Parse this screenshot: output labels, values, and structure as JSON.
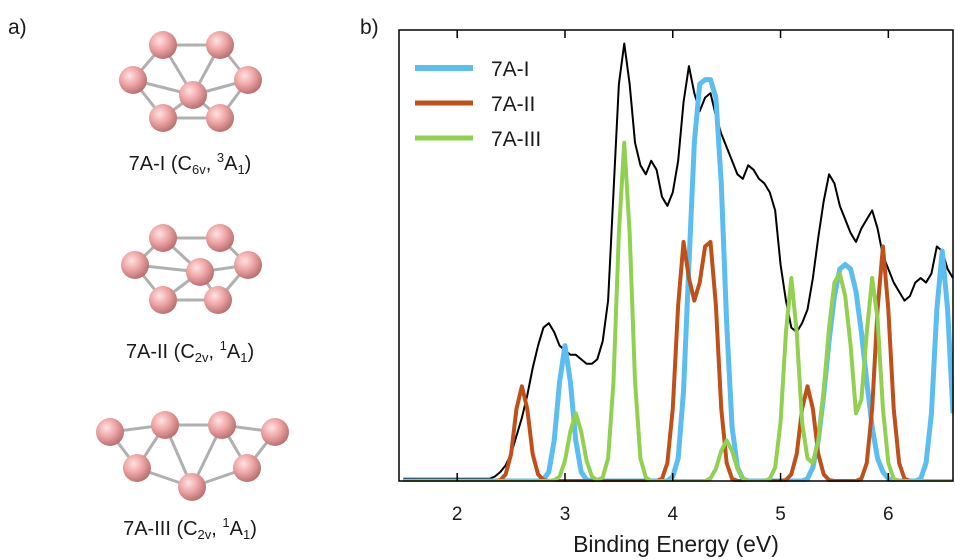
{
  "panel_labels": [
    "a)",
    "b)"
  ],
  "structures": [
    {
      "label": [
        {
          "text": "7A-I (C"
        },
        {
          "text": "6v",
          "style": "sub"
        },
        {
          "text": ", "
        },
        {
          "text": "3",
          "style": "sup"
        },
        {
          "text": "A"
        },
        {
          "text": "1",
          "style": "sub"
        },
        {
          "text": ")"
        }
      ]
    },
    {
      "label": [
        {
          "text": "7A-II (C"
        },
        {
          "text": "2v",
          "style": "sub"
        },
        {
          "text": ", "
        },
        {
          "text": "1",
          "style": "sup"
        },
        {
          "text": "A"
        },
        {
          "text": "1",
          "style": "sub"
        },
        {
          "text": ")"
        }
      ]
    },
    {
      "label": [
        {
          "text": "7A-III (C"
        },
        {
          "text": "2v",
          "style": "sub"
        },
        {
          "text": ", "
        },
        {
          "text": "1",
          "style": "sup"
        },
        {
          "text": "A"
        },
        {
          "text": "1",
          "style": "sub"
        },
        {
          "text": ")"
        }
      ]
    }
  ],
  "chart_data": {
    "type": "line",
    "x_label": "Binding Energy (eV)",
    "legend": "upper left",
    "xlim": [
      1.46,
      6.6
    ],
    "ylim": [
      0,
      100
    ],
    "xticks": [
      2,
      3,
      4,
      5,
      6
    ],
    "x": [
      1.5,
      1.55,
      1.6,
      1.65,
      1.7,
      1.75,
      1.8,
      1.85,
      1.9,
      1.95,
      2,
      2.05,
      2.1,
      2.15,
      2.2,
      2.25,
      2.3,
      2.35,
      2.4,
      2.45,
      2.5,
      2.55,
      2.6,
      2.65,
      2.7,
      2.75,
      2.8,
      2.85,
      2.9,
      2.95,
      3,
      3.05,
      3.1,
      3.15,
      3.2,
      3.25,
      3.3,
      3.35,
      3.4,
      3.45,
      3.5,
      3.55,
      3.6,
      3.65,
      3.7,
      3.75,
      3.8,
      3.85,
      3.9,
      3.95,
      4,
      4.05,
      4.1,
      4.15,
      4.2,
      4.25,
      4.3,
      4.35,
      4.4,
      4.45,
      4.5,
      4.55,
      4.6,
      4.65,
      4.7,
      4.75,
      4.8,
      4.85,
      4.9,
      4.95,
      5,
      5.05,
      5.1,
      5.15,
      5.2,
      5.25,
      5.3,
      5.35,
      5.4,
      5.45,
      5.5,
      5.55,
      5.6,
      5.65,
      5.7,
      5.75,
      5.8,
      5.85,
      5.9,
      5.95,
      6,
      6.05,
      6.1,
      6.15,
      6.2,
      6.25,
      6.3,
      6.35,
      6.4,
      6.45,
      6.5,
      6.55,
      6.6
    ],
    "series": [
      {
        "color": "#000000",
        "width": 2,
        "values": [
          0.5,
          0.5,
          0.5,
          0.5,
          0.5,
          0.5,
          0.5,
          0.5,
          0.5,
          0.5,
          0.5,
          0.5,
          0.5,
          0.5,
          0.5,
          0.5,
          0.5,
          1,
          2,
          3.5,
          6,
          10,
          14,
          19,
          25,
          30,
          34,
          35,
          33,
          30,
          29,
          28,
          28,
          27,
          26,
          26,
          27,
          31,
          40,
          64,
          88,
          97,
          88,
          75,
          70,
          68,
          71,
          69,
          63,
          61,
          64,
          71,
          84,
          92,
          86,
          82,
          85,
          86,
          81,
          77,
          74,
          71,
          68,
          67,
          70,
          69,
          67,
          66,
          64,
          60,
          48,
          40,
          34,
          33,
          35,
          38,
          45,
          54,
          62,
          68,
          66,
          61,
          58,
          55,
          53,
          56,
          58,
          60,
          56,
          50,
          47,
          44,
          42,
          40,
          41,
          44,
          45,
          44,
          46,
          52,
          51,
          47,
          45
        ]
      },
      {
        "name": "7A-I",
        "color": "#5bbdf0",
        "width": 5,
        "values": [
          0,
          0,
          0,
          0,
          0,
          0,
          0,
          0,
          0,
          0,
          0,
          0,
          0,
          0,
          0,
          0,
          0,
          0,
          0,
          0,
          0,
          0,
          0,
          0,
          0,
          0,
          0.3,
          2,
          9,
          22,
          30,
          22,
          9,
          2,
          0.3,
          0,
          0,
          0,
          0,
          0,
          0,
          0,
          0,
          0,
          0,
          0,
          0,
          0,
          0,
          0,
          1,
          5,
          20,
          48,
          75,
          88,
          89,
          89,
          85,
          66,
          35,
          12,
          3,
          0.5,
          0,
          0,
          0,
          0,
          0,
          0,
          0,
          0,
          0,
          0,
          0,
          0.5,
          3,
          9,
          19,
          31,
          41,
          47,
          48,
          47,
          42,
          33,
          22,
          12,
          5,
          2,
          0.5,
          0,
          0,
          0,
          0,
          0,
          0.5,
          4,
          15,
          38,
          51,
          38,
          15
        ]
      },
      {
        "name": "7A-II",
        "color": "#c0501a",
        "width": 4,
        "values": [
          0,
          0,
          0,
          0,
          0,
          0,
          0,
          0,
          0,
          0,
          0,
          0,
          0,
          0,
          0,
          0,
          0,
          0,
          0.2,
          1.5,
          6,
          16,
          21,
          16,
          6,
          1.5,
          0.2,
          0,
          0,
          0,
          0,
          0,
          0,
          0,
          0,
          0,
          0,
          0,
          0,
          0,
          0,
          0,
          0,
          0,
          0,
          0,
          0,
          0,
          0.5,
          4,
          16,
          39,
          53,
          45,
          40,
          44,
          52,
          53,
          39,
          16,
          4,
          0.5,
          0,
          0,
          0,
          0,
          0,
          0,
          0,
          0,
          0,
          0.2,
          1.5,
          6,
          16,
          21,
          16,
          6,
          1.5,
          0.2,
          0,
          0,
          0,
          0,
          0,
          0.5,
          4,
          16,
          38,
          52,
          38,
          16,
          4,
          0.5,
          0,
          0,
          0,
          0,
          0,
          0,
          0,
          0,
          0
        ]
      },
      {
        "name": "7A-III",
        "color": "#92d050",
        "width": 4,
        "values": [
          0,
          0,
          0,
          0,
          0,
          0,
          0,
          0,
          0,
          0,
          0,
          0,
          0,
          0,
          0,
          0,
          0,
          0,
          0,
          0,
          0,
          0,
          0,
          0,
          0,
          0,
          0,
          0,
          0.2,
          1,
          4.5,
          11,
          15,
          11,
          4.5,
          1,
          0.2,
          0.8,
          5,
          22,
          55,
          75,
          55,
          22,
          5,
          0.8,
          0,
          0,
          0,
          0,
          0,
          0,
          0,
          0,
          0,
          0,
          0,
          0.6,
          2.7,
          6.7,
          9,
          6.7,
          2.7,
          0.6,
          0,
          0,
          0,
          0,
          0.5,
          3,
          13,
          33,
          45,
          33,
          13,
          5,
          4,
          9,
          20,
          34,
          44,
          46,
          41,
          30,
          15,
          18,
          33,
          45,
          36,
          16,
          4,
          0.5,
          0,
          0,
          0,
          0,
          0,
          0,
          0,
          0,
          0,
          0,
          0
        ]
      }
    ]
  }
}
